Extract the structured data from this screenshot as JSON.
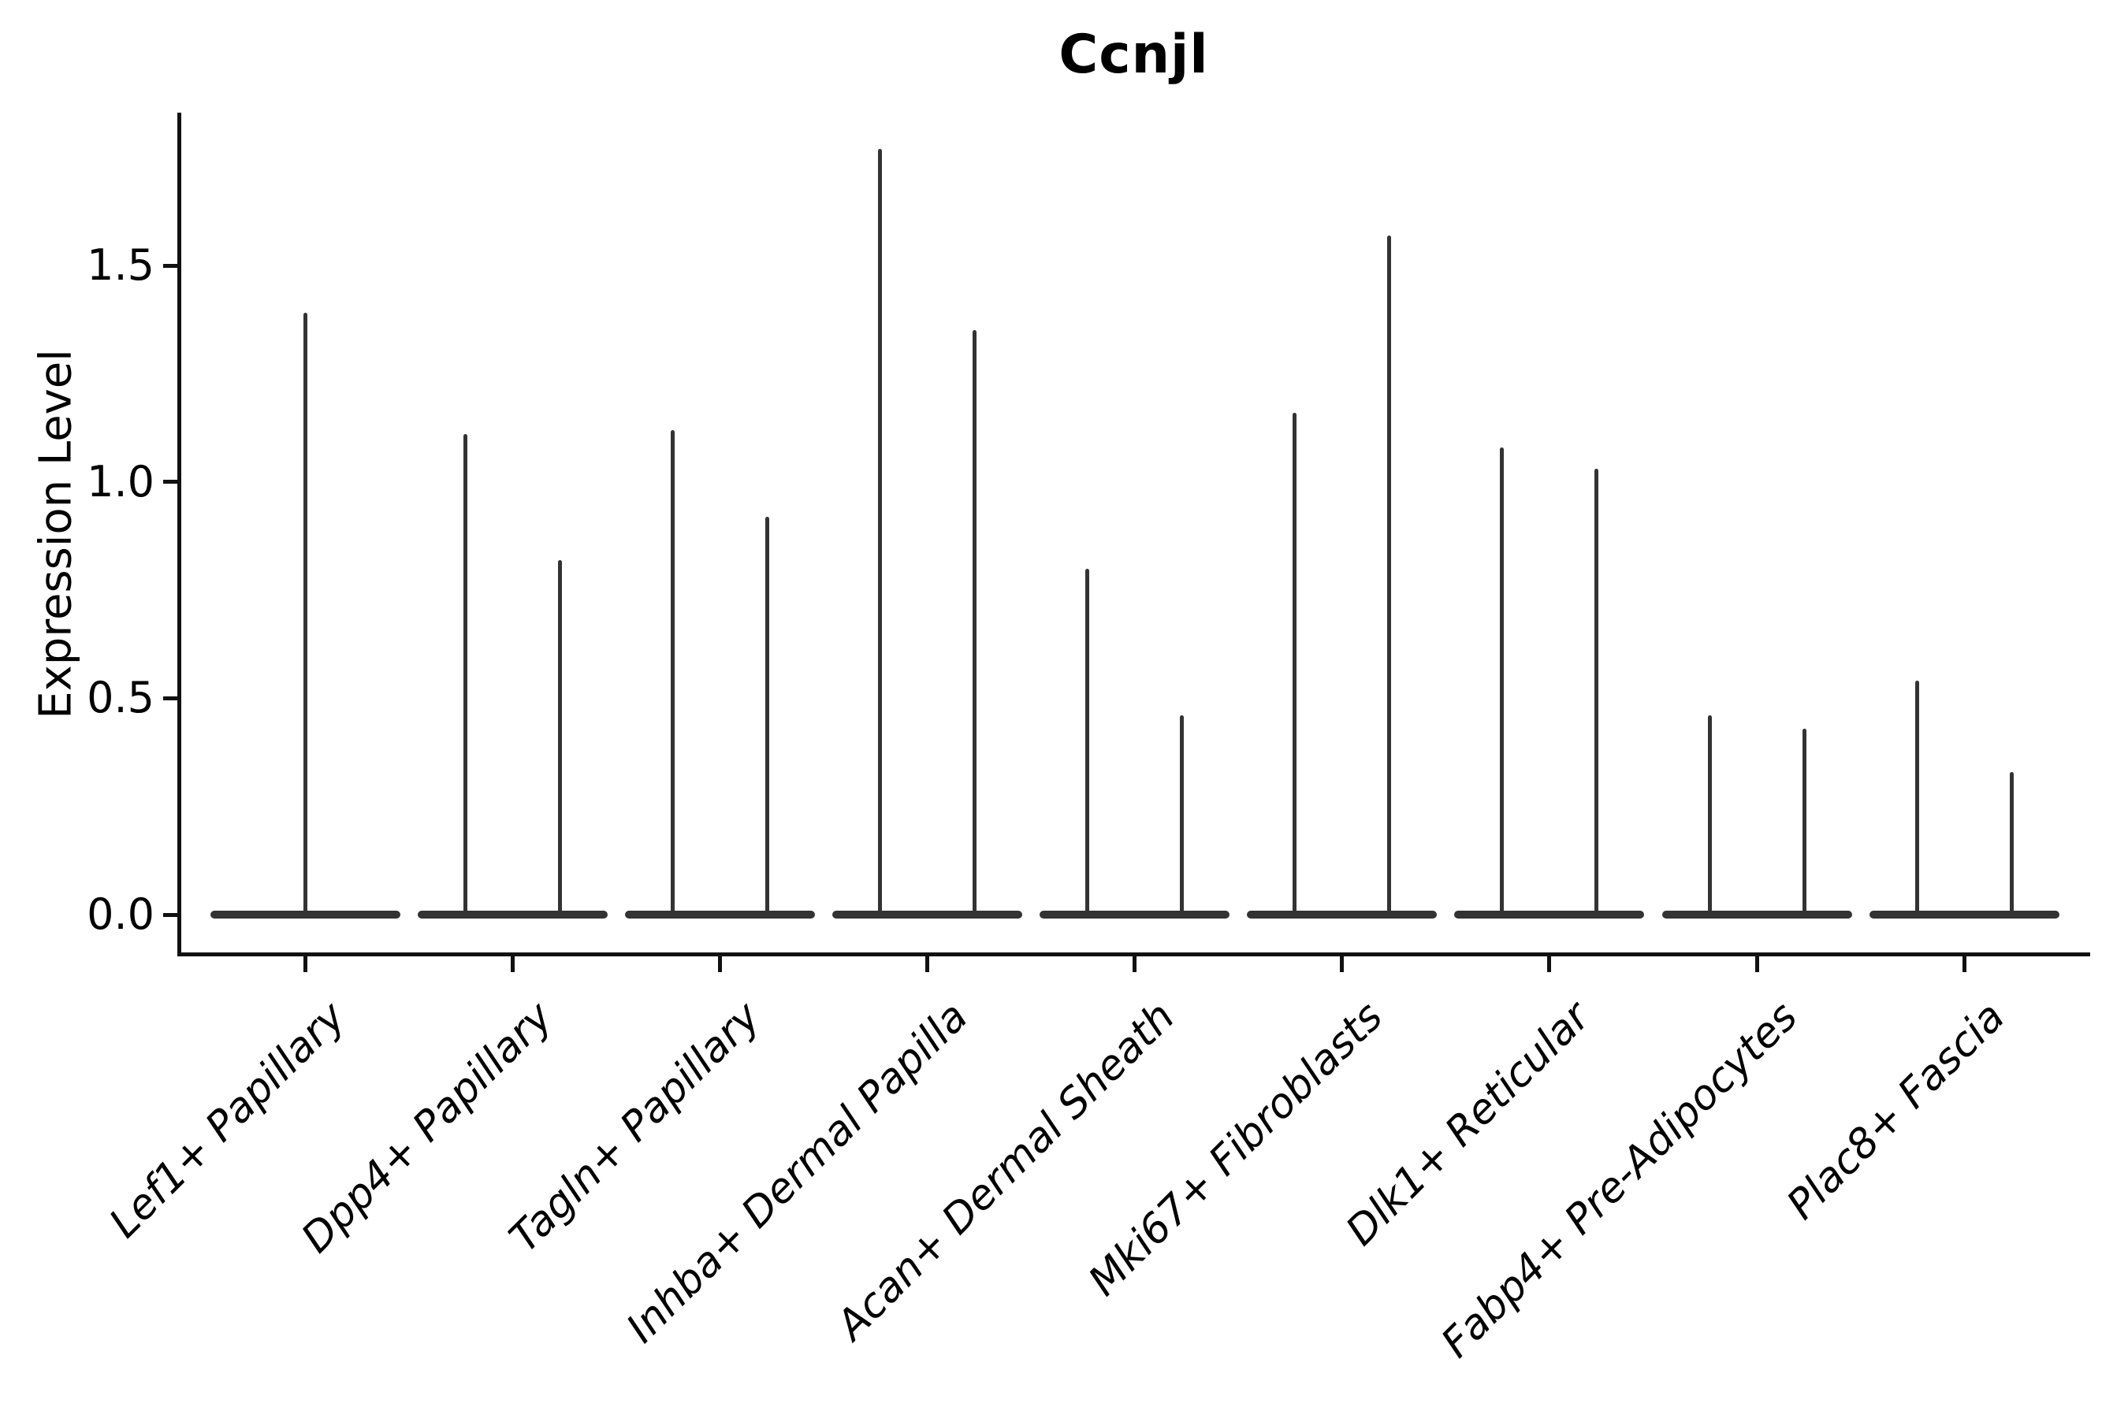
{
  "figure": {
    "kind": "matplotlib-style violin plot figure",
    "background": "#ffffff"
  },
  "chart_data": {
    "type": "violin",
    "title": "Ccnjl",
    "ylabel": "Expression Level",
    "xlabel": "",
    "ytick_labels": [
      "0.0",
      "0.5",
      "1.0",
      "1.5"
    ],
    "ytick_values": [
      0.0,
      0.5,
      1.0,
      1.5
    ],
    "ylim": [
      -0.09,
      1.85
    ],
    "grid": false,
    "legend": "none",
    "style_note": "Needle-thin violins: wide flat density mass at expression 0 with sparse thin spikes reaching the maximum expressed value; single spike for first category, paired spikes for all others",
    "categories": [
      "Lef1+ Papillary",
      "Dpp4+ Papillary",
      "Tagln+ Papillary",
      "Inhba+ Dermal Papilla",
      "Acan+ Dermal Sheath",
      "Mki67+ Fibroblasts",
      "Dlk1+ Reticular",
      "Fabp4+ Pre-Adipocytes",
      "Plac8+ Fascia"
    ],
    "series": [
      {
        "category": "Lef1+ Papillary",
        "spike_max_values": [
          1.39
        ],
        "baseline_value": 0.0
      },
      {
        "category": "Dpp4+ Papillary",
        "spike_max_values": [
          1.11,
          0.82
        ],
        "baseline_value": 0.0
      },
      {
        "category": "Tagln+ Papillary",
        "spike_max_values": [
          1.12,
          0.92
        ],
        "baseline_value": 0.0
      },
      {
        "category": "Inhba+ Dermal Papilla",
        "spike_max_values": [
          1.77,
          1.35
        ],
        "baseline_value": 0.0
      },
      {
        "category": "Acan+ Dermal Sheath",
        "spike_max_values": [
          0.8,
          0.46
        ],
        "baseline_value": 0.0
      },
      {
        "category": "Mki67+ Fibroblasts",
        "spike_max_values": [
          1.16,
          1.57
        ],
        "baseline_value": 0.0
      },
      {
        "category": "Dlk1+ Reticular",
        "spike_max_values": [
          1.08,
          1.03
        ],
        "baseline_value": 0.0
      },
      {
        "category": "Fabp4+ Pre-Adipocytes",
        "spike_max_values": [
          0.46,
          0.43
        ],
        "baseline_value": 0.0
      },
      {
        "category": "Plac8+ Fascia",
        "spike_max_values": [
          0.54,
          0.33
        ],
        "baseline_value": 0.0
      }
    ],
    "colors": {
      "violin": "#333333",
      "axis": "#111111",
      "text": "#000000",
      "background": "#ffffff"
    }
  }
}
